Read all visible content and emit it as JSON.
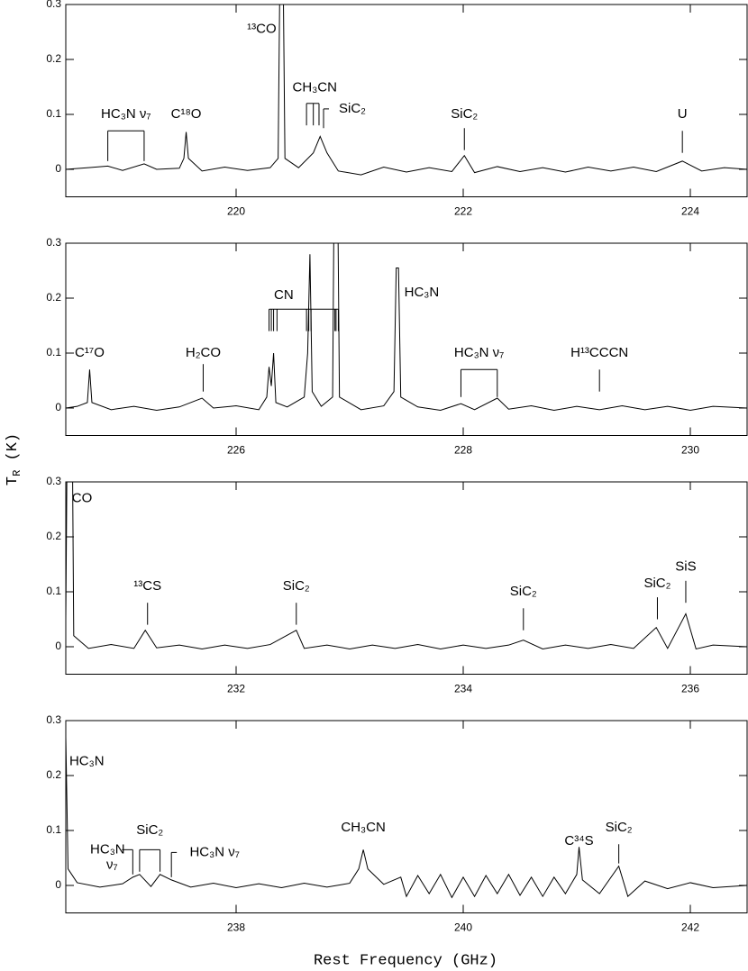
{
  "chart_data": [
    {
      "type": "line",
      "color": "#000000",
      "xlim": [
        218.5,
        224.5
      ],
      "ylim": [
        -0.05,
        0.3
      ],
      "xticks": [
        220,
        222,
        224
      ],
      "yticks": [
        0,
        0.1,
        0.2,
        0.3
      ],
      "x": [
        218.5,
        218.7,
        218.87,
        219.0,
        219.19,
        219.3,
        219.5,
        219.54,
        219.56,
        219.58,
        219.7,
        219.9,
        220.1,
        220.3,
        220.37,
        220.39,
        220.41,
        220.43,
        220.55,
        220.68,
        220.74,
        220.8,
        220.9,
        221.1,
        221.3,
        221.5,
        221.7,
        221.9,
        222.01,
        222.1,
        222.3,
        222.5,
        222.7,
        222.9,
        223.1,
        223.3,
        223.5,
        223.7,
        223.93,
        224.1,
        224.3,
        224.5
      ],
      "values": [
        0,
        0.003,
        0.006,
        -0.002,
        0.01,
        0,
        0.002,
        0.02,
        0.068,
        0.02,
        -0.003,
        0.004,
        -0.002,
        0.003,
        0.02,
        0.45,
        0.45,
        0.02,
        0.003,
        0.03,
        0.06,
        0.03,
        -0.003,
        -0.01,
        0.004,
        -0.005,
        0.003,
        -0.004,
        0.025,
        -0.006,
        0.005,
        -0.004,
        0.003,
        -0.005,
        0.004,
        -0.003,
        0.004,
        -0.004,
        0.015,
        -0.003,
        0.003,
        0
      ],
      "annotations": [
        {
          "text": [
            "HC₃N  ν₇"
          ],
          "x": [
            218.87,
            219.19
          ]
        },
        {
          "text": [
            "C¹⁸O"
          ],
          "x": [
            219.56
          ]
        },
        {
          "text": [
            "¹³CO"
          ],
          "x": [
            220.4
          ]
        },
        {
          "text": [
            "CH₃CN"
          ],
          "x": [
            220.62,
            220.68,
            220.73
          ]
        },
        {
          "text": [
            "SiC₂"
          ],
          "x": [
            220.77
          ]
        },
        {
          "text": [
            "SiC₂"
          ],
          "x": [
            222.01
          ]
        },
        {
          "text": [
            "U"
          ],
          "x": [
            223.93
          ]
        }
      ]
    },
    {
      "type": "line",
      "color": "#000000",
      "xlim": [
        224.5,
        230.5
      ],
      "ylim": [
        -0.05,
        0.3
      ],
      "xticks": [
        226,
        228,
        230
      ],
      "yticks": [
        0,
        0.1,
        0.2,
        0.3
      ],
      "x": [
        224.5,
        224.6,
        224.69,
        224.71,
        224.73,
        224.9,
        225.1,
        225.3,
        225.5,
        225.7,
        225.8,
        226.0,
        226.2,
        226.27,
        226.29,
        226.31,
        226.33,
        226.35,
        226.45,
        226.6,
        226.63,
        226.65,
        226.67,
        226.75,
        226.85,
        226.87,
        226.89,
        226.91,
        227.1,
        227.3,
        227.39,
        227.41,
        227.43,
        227.45,
        227.6,
        227.8,
        227.98,
        228.1,
        228.3,
        228.4,
        228.6,
        228.8,
        229.0,
        229.2,
        229.4,
        229.6,
        229.8,
        230.0,
        230.2,
        230.5
      ],
      "values": [
        0,
        0.003,
        0.01,
        0.07,
        0.01,
        -0.003,
        0.003,
        -0.004,
        0.002,
        0.018,
        0,
        0.004,
        -0.003,
        0.02,
        0.075,
        0.04,
        0.1,
        0.01,
        0.002,
        0.02,
        0.1,
        0.28,
        0.03,
        0.003,
        0.02,
        0.6,
        0.5,
        0.02,
        -0.003,
        0.004,
        0.03,
        0.255,
        0.255,
        0.02,
        0.002,
        -0.004,
        0.008,
        -0.003,
        0.018,
        -0.002,
        0.004,
        -0.004,
        0.003,
        -0.003,
        0.004,
        -0.003,
        0.003,
        -0.004,
        0.003,
        0
      ],
      "annotations": [
        {
          "text": [
            "C¹⁷O"
          ],
          "x": [
            224.71
          ]
        },
        {
          "text": [
            "H₂CO"
          ],
          "x": [
            225.71
          ]
        },
        {
          "text": [
            "CN"
          ],
          "x": [
            226.29,
            226.31,
            226.33,
            226.36,
            226.62,
            226.64,
            226.66,
            226.87,
            226.88,
            226.9
          ]
        },
        {
          "text": [
            "HC₃N"
          ],
          "x": [
            227.42
          ]
        },
        {
          "text": [
            "HC₃N  ν₇"
          ],
          "x": [
            227.98,
            228.3
          ]
        },
        {
          "text": [
            "H¹³CCCN"
          ],
          "x": [
            229.2
          ]
        }
      ]
    },
    {
      "type": "line",
      "color": "#000000",
      "xlim": [
        230.5,
        236.5
      ],
      "ylim": [
        -0.05,
        0.3
      ],
      "xticks": [
        232,
        234,
        236
      ],
      "yticks": [
        0,
        0.1,
        0.2,
        0.3
      ],
      "x": [
        230.5,
        230.52,
        230.55,
        230.57,
        230.7,
        230.9,
        231.1,
        231.2,
        231.3,
        231.5,
        231.7,
        231.9,
        232.1,
        232.3,
        232.53,
        232.6,
        232.8,
        233.0,
        233.2,
        233.4,
        233.6,
        233.8,
        234.0,
        234.2,
        234.4,
        234.53,
        234.7,
        234.9,
        235.1,
        235.3,
        235.5,
        235.7,
        235.8,
        235.96,
        236.05,
        236.2,
        236.5
      ],
      "values": [
        0.05,
        0.6,
        0.6,
        0.02,
        -0.003,
        0.004,
        -0.003,
        0.03,
        -0.002,
        0.003,
        -0.004,
        0.003,
        -0.003,
        0.004,
        0.03,
        -0.003,
        0.003,
        -0.004,
        0.003,
        -0.003,
        0.004,
        -0.004,
        0.003,
        -0.003,
        0.003,
        0.012,
        -0.004,
        0.003,
        -0.003,
        0.004,
        -0.003,
        0.035,
        -0.003,
        0.06,
        -0.004,
        0.003,
        0
      ],
      "annotations": [
        {
          "text": [
            "CO"
          ],
          "x": [
            230.54
          ]
        },
        {
          "text": [
            "¹³CS"
          ],
          "x": [
            231.22
          ]
        },
        {
          "text": [
            "SiC₂"
          ],
          "x": [
            232.53
          ]
        },
        {
          "text": [
            "SiC₂"
          ],
          "x": [
            234.53
          ]
        },
        {
          "text": [
            "SiC₂"
          ],
          "x": [
            235.71
          ]
        },
        {
          "text": [
            "SiS"
          ],
          "x": [
            235.96
          ]
        }
      ]
    },
    {
      "type": "line",
      "color": "#000000",
      "xlim": [
        236.5,
        242.5
      ],
      "ylim": [
        -0.05,
        0.3
      ],
      "xticks": [
        238,
        240,
        242
      ],
      "yticks": [
        0,
        0.1,
        0.2,
        0.3
      ],
      "x": [
        236.5,
        236.52,
        236.6,
        236.8,
        237.0,
        237.09,
        237.15,
        237.25,
        237.33,
        237.43,
        237.6,
        237.8,
        238.0,
        238.2,
        238.4,
        238.6,
        238.8,
        239.0,
        239.08,
        239.12,
        239.16,
        239.3,
        239.45,
        239.5,
        239.6,
        239.7,
        239.8,
        239.9,
        240.0,
        240.1,
        240.2,
        240.3,
        240.4,
        240.5,
        240.6,
        240.7,
        240.8,
        240.9,
        241.0,
        241.02,
        241.05,
        241.2,
        241.37,
        241.45,
        241.6,
        241.8,
        242.0,
        242.2,
        242.5
      ],
      "values": [
        0.27,
        0.03,
        0.005,
        -0.003,
        0.003,
        0.015,
        0.02,
        -0.002,
        0.02,
        0.01,
        -0.003,
        0.004,
        -0.004,
        0.003,
        -0.004,
        0.004,
        -0.003,
        0.004,
        0.03,
        0.065,
        0.03,
        0.002,
        0.015,
        -0.02,
        0.018,
        -0.015,
        0.02,
        -0.022,
        0.015,
        -0.02,
        0.018,
        -0.015,
        0.02,
        -0.018,
        0.015,
        -0.02,
        0.015,
        -0.015,
        0.02,
        0.07,
        0.01,
        -0.015,
        0.035,
        -0.02,
        0.008,
        -0.006,
        0.005,
        -0.004,
        0
      ],
      "annotations": [
        {
          "text": [
            "HC₃N"
          ],
          "x": [
            236.51
          ]
        },
        {
          "text": [
            "HC₃N",
            "ν₇"
          ],
          "x": [
            237.09
          ]
        },
        {
          "text": [
            "SiC₂"
          ],
          "x": [
            237.15,
            237.33
          ]
        },
        {
          "text": [
            "HC₃N  ν₇"
          ],
          "x": [
            237.43
          ]
        },
        {
          "text": [
            "CH₃CN"
          ],
          "x": [
            239.12
          ]
        },
        {
          "text": [
            "C³⁴S"
          ],
          "x": [
            241.02
          ]
        },
        {
          "text": [
            "SiC₂"
          ],
          "x": [
            241.37
          ]
        }
      ]
    }
  ],
  "xlabel": "Rest Frequency (GHz)",
  "ylabel": {
    "main": "T",
    "sub": "R",
    "unit": "(K)"
  }
}
